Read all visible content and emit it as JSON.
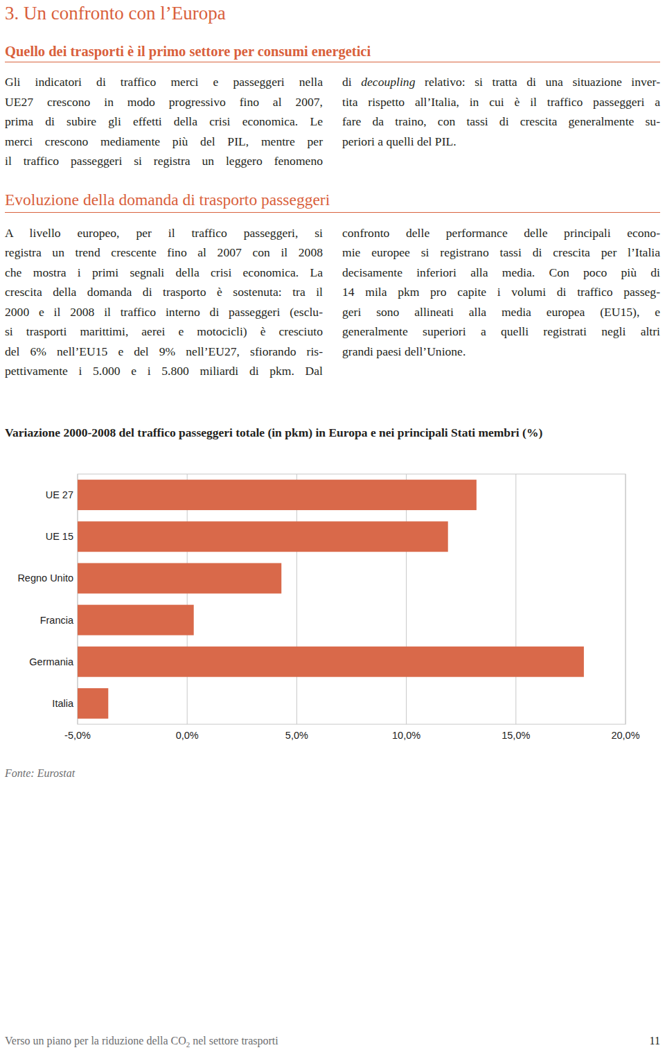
{
  "header": {
    "title": "3. Un confronto con l’Europa"
  },
  "sections": [
    {
      "heading": "Quello dei trasporti è il primo settore per consumi energetici",
      "columns": [
        {
          "lines": [
            [
              "Gli indicatori di traffico merci e passeggeri nella"
            ],
            [
              "UE27 crescono in modo progressivo fino al 2007,"
            ],
            [
              "prima di subire gli effetti della crisi economica. Le"
            ],
            [
              "merci crescono mediamente più del PIL, mentre per"
            ],
            [
              "il traffico passeggeri si registra un leggero fenomeno"
            ]
          ]
        },
        {
          "lines": [
            [
              "di ",
              "decoupling",
              " relativo: si tratta di una situazione inver-"
            ],
            [
              "tita rispetto all’Italia, in cui è il traffico passeggeri a"
            ],
            [
              "fare da traino, con tassi di crescita generalmente su-"
            ],
            [
              "periori a quelli del PIL."
            ]
          ]
        }
      ]
    },
    {
      "heading": "Evoluzione della domanda di trasporto passeggeri",
      "columns": [
        {
          "lines": [
            [
              "A livello europeo, per il traffico passeggeri, si"
            ],
            [
              "registra un trend crescente fino al 2007 con il 2008"
            ],
            [
              "che mostra i primi segnali della crisi economica. La"
            ],
            [
              "crescita della domanda di trasporto è sostenuta: tra il"
            ],
            [
              "2000 e il 2008 il traffico interno di passeggeri (esclu-"
            ],
            [
              "si trasporti marittimi, aerei e motocicli) è cresciuto"
            ],
            [
              "del 6% nell’EU15 e del 9% nell’EU27, sfiorando ris-"
            ],
            [
              "pettivamente i 5.000 e i 5.800 miliardi di pkm. Dal"
            ]
          ]
        },
        {
          "lines": [
            [
              "confronto delle performance delle principali econo-"
            ],
            [
              "mie europee si registrano tassi di crescita per l’Italia"
            ],
            [
              "decisamente inferiori alla media. Con poco più di"
            ],
            [
              "14 mila pkm pro capite i volumi di traffico passeg-"
            ],
            [
              "geri sono allineati alla media europea (EU15), e"
            ],
            [
              "generalmente superiori a quelli registrati negli altri"
            ],
            [
              "grandi paesi dell’Unione."
            ]
          ]
        }
      ]
    }
  ],
  "chart_data": {
    "type": "bar",
    "orientation": "horizontal",
    "title": "Variazione 2000-2008 del traffico passeggeri totale (in pkm) in Europa e nei principali Stati membri (%)",
    "categories": [
      "UE 27",
      "UE 15",
      "Regno Unito",
      "Francia",
      "Germania",
      "Italia"
    ],
    "values": [
      13.2,
      11.9,
      4.3,
      0.3,
      18.1,
      -3.6
    ],
    "color": "#d9694a",
    "xlim": [
      -5,
      20
    ],
    "xticks": [
      {
        "value": -5,
        "label": "-5,0%"
      },
      {
        "value": 0,
        "label": "0,0%"
      },
      {
        "value": 5,
        "label": "5,0%"
      },
      {
        "value": 10,
        "label": "10,0%"
      },
      {
        "value": 15,
        "label": "15,0%"
      },
      {
        "value": 20,
        "label": "20,0%"
      }
    ],
    "grid": true
  },
  "source": "Fonte: Eurostat",
  "footer": {
    "text": [
      "Verso un piano per la riduzione della CO",
      "2",
      " nel settore trasporti"
    ],
    "page": 11
  }
}
